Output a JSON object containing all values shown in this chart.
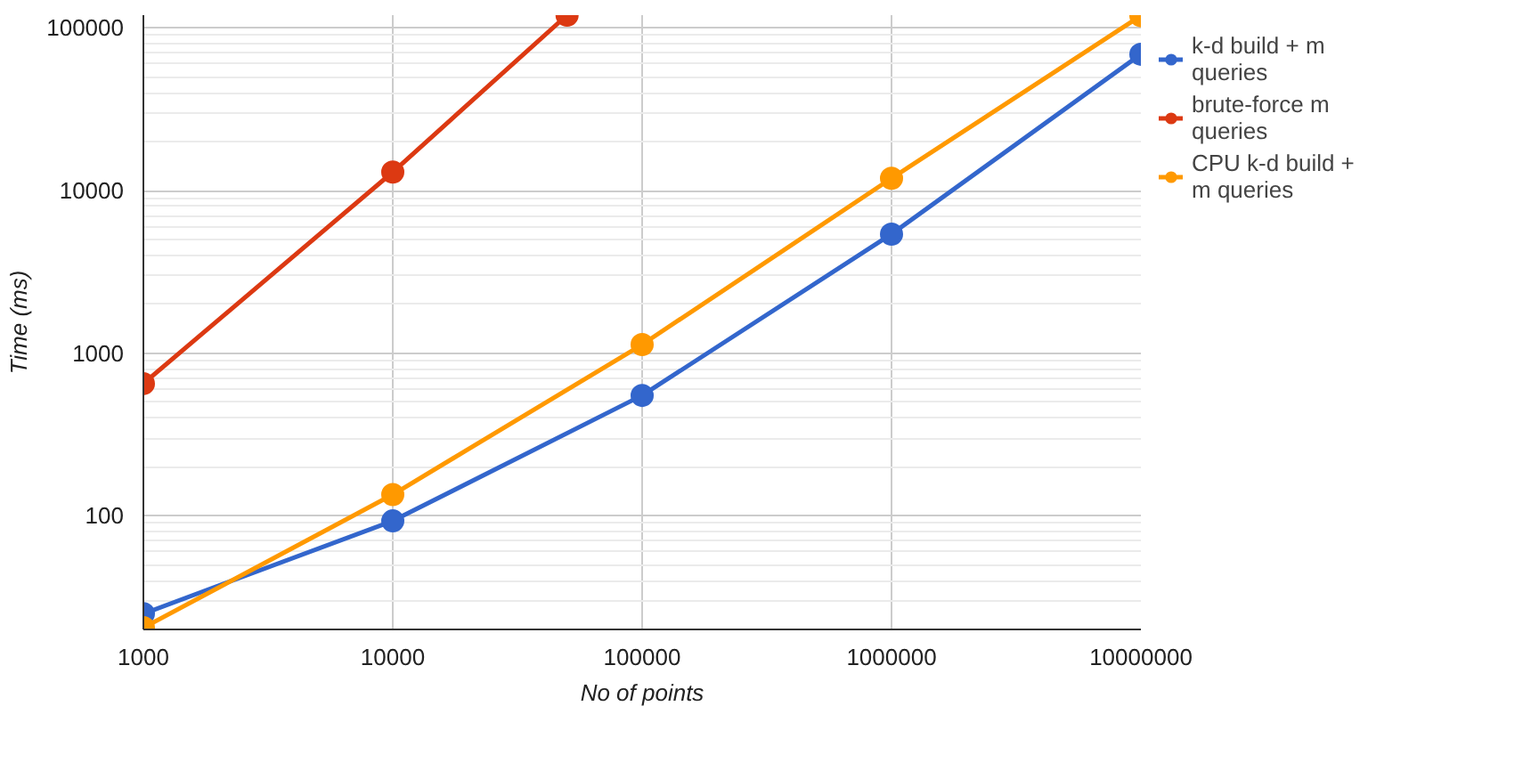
{
  "chart_data": {
    "type": "line",
    "xlabel": "No of points",
    "ylabel": "Time (ms)",
    "log": "xy",
    "grid": true,
    "legend": "right",
    "marker": "circle",
    "line_style": "solid",
    "x": [
      1000,
      10000,
      100000,
      1000000,
      10000000
    ],
    "xlim": [
      1000,
      10000000
    ],
    "xticks": [
      1000,
      10000,
      100000,
      1000000,
      10000000
    ],
    "ylim": [
      20,
      120000
    ],
    "yticks": [
      100,
      1000,
      10000,
      100000
    ],
    "series": [
      {
        "name": "k-d build + m queries",
        "color": "#3366cc",
        "values": [
          25,
          93,
          550,
          5400,
          69000
        ]
      },
      {
        "name": "brute-force m queries",
        "color": "#dc3912",
        "x": [
          1000,
          10000,
          50000
        ],
        "values": [
          650,
          13000,
          120000
        ]
      },
      {
        "name": "CPU k-d build + m queries",
        "color": "#ff9900",
        "values": [
          20.5,
          135,
          1130,
          11900,
          119000
        ]
      }
    ]
  }
}
